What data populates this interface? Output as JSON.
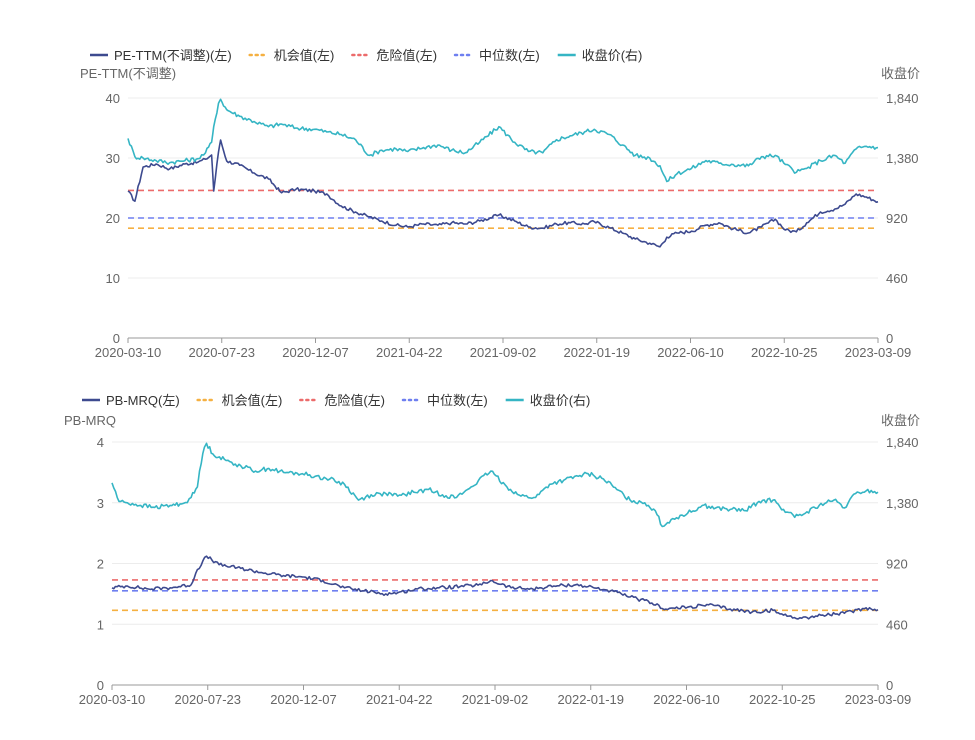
{
  "chart_data": [
    {
      "type": "line",
      "ylabel_left": "PE-TTM(不调整)",
      "ylabel_right": "收盘价",
      "legend": [
        {
          "name": "PE-TTM(不调整)(左)",
          "style": "solid",
          "color": "#3d4a8f"
        },
        {
          "name": "机会值(左)",
          "style": "dotted",
          "color": "#f5b041"
        },
        {
          "name": "危险值(左)",
          "style": "dotted",
          "color": "#ec6b6b"
        },
        {
          "name": "中位数(左)",
          "style": "dotted",
          "color": "#6e7ff0"
        },
        {
          "name": "收盘价(右)",
          "style": "solid",
          "color": "#35b5c4"
        }
      ],
      "legend_position": "top-left",
      "x_ticks": [
        "2020-03-10",
        "2020-07-23",
        "2020-12-07",
        "2021-04-22",
        "2021-09-02",
        "2022-01-19",
        "2022-06-10",
        "2022-10-25",
        "2023-03-09"
      ],
      "y_left_ticks": [
        "0",
        "10",
        "20",
        "30",
        "40"
      ],
      "y_left_range": [
        0,
        40
      ],
      "y_right_ticks": [
        "0",
        "460",
        "920",
        "1,380",
        "1,840"
      ],
      "y_right_range": [
        0,
        1840
      ],
      "grid": true,
      "reference_lines": {
        "opportunity": 18.3,
        "danger": 24.6,
        "median": 20.0
      },
      "series": [
        {
          "name": "PE-TTM(不调整)",
          "axis": "left",
          "color": "#3d4a8f",
          "x": [
            "2020-03-10",
            "2020-03-20",
            "2020-04-01",
            "2020-04-20",
            "2020-05-10",
            "2020-06-01",
            "2020-06-20",
            "2020-07-01",
            "2020-07-10",
            "2020-07-13",
            "2020-07-20",
            "2020-07-23",
            "2020-08-01",
            "2020-08-20",
            "2020-09-10",
            "2020-10-01",
            "2020-10-20",
            "2020-11-10",
            "2020-12-07",
            "2020-12-25",
            "2021-01-15",
            "2021-02-05",
            "2021-02-25",
            "2021-03-15",
            "2021-04-05",
            "2021-04-22",
            "2021-05-15",
            "2021-06-05",
            "2021-06-25",
            "2021-07-15",
            "2021-08-05",
            "2021-09-02",
            "2021-09-25",
            "2021-10-15",
            "2021-11-05",
            "2021-11-25",
            "2021-12-15",
            "2022-01-05",
            "2022-01-19",
            "2022-02-10",
            "2022-03-01",
            "2022-03-20",
            "2022-04-10",
            "2022-04-25",
            "2022-05-05",
            "2022-05-20",
            "2022-06-10",
            "2022-07-01",
            "2022-07-20",
            "2022-08-10",
            "2022-09-01",
            "2022-09-20",
            "2022-10-10",
            "2022-10-25",
            "2022-11-10",
            "2022-11-25",
            "2022-12-15",
            "2023-01-05",
            "2023-01-20",
            "2023-02-05",
            "2023-02-20",
            "2023-03-09"
          ],
          "values": [
            24.5,
            22.8,
            28.5,
            29.0,
            28.2,
            29.0,
            29.3,
            29.8,
            30.5,
            24.5,
            31.0,
            33.0,
            29.5,
            28.8,
            27.5,
            26.5,
            24.2,
            24.8,
            24.5,
            24.0,
            22.0,
            21.0,
            20.2,
            19.5,
            18.8,
            18.5,
            19.0,
            18.8,
            19.2,
            19.0,
            19.5,
            20.5,
            19.5,
            18.5,
            18.3,
            19.0,
            19.2,
            19.0,
            19.4,
            18.4,
            17.5,
            16.5,
            15.8,
            15.2,
            16.8,
            17.5,
            17.8,
            18.8,
            19.2,
            18.2,
            17.5,
            18.5,
            19.8,
            18.0,
            17.7,
            19.2,
            21.0,
            21.5,
            22.3,
            24.0,
            23.5,
            22.7
          ]
        },
        {
          "name": "收盘价",
          "axis": "right",
          "color": "#35b5c4",
          "x": [
            "2020-03-10",
            "2020-03-20",
            "2020-04-01",
            "2020-04-20",
            "2020-05-10",
            "2020-06-01",
            "2020-06-20",
            "2020-07-01",
            "2020-07-10",
            "2020-07-13",
            "2020-07-20",
            "2020-07-23",
            "2020-08-01",
            "2020-08-20",
            "2020-09-10",
            "2020-10-01",
            "2020-10-20",
            "2020-11-10",
            "2020-12-07",
            "2020-12-25",
            "2021-01-15",
            "2021-02-05",
            "2021-02-25",
            "2021-03-15",
            "2021-04-05",
            "2021-04-22",
            "2021-05-15",
            "2021-06-05",
            "2021-06-25",
            "2021-07-15",
            "2021-08-05",
            "2021-09-02",
            "2021-09-25",
            "2021-10-15",
            "2021-11-05",
            "2021-11-25",
            "2021-12-15",
            "2022-01-05",
            "2022-01-19",
            "2022-02-10",
            "2022-03-01",
            "2022-03-20",
            "2022-04-10",
            "2022-04-25",
            "2022-05-05",
            "2022-05-20",
            "2022-06-10",
            "2022-07-01",
            "2022-07-20",
            "2022-08-10",
            "2022-09-01",
            "2022-09-20",
            "2022-10-10",
            "2022-10-25",
            "2022-11-10",
            "2022-11-25",
            "2022-12-15",
            "2023-01-05",
            "2023-01-20",
            "2023-02-05",
            "2023-02-20",
            "2023-03-09"
          ],
          "values": [
            1530,
            1390,
            1380,
            1360,
            1345,
            1360,
            1375,
            1420,
            1500,
            1620,
            1800,
            1830,
            1750,
            1700,
            1660,
            1620,
            1640,
            1610,
            1600,
            1580,
            1560,
            1520,
            1400,
            1440,
            1450,
            1430,
            1460,
            1480,
            1440,
            1420,
            1500,
            1620,
            1500,
            1430,
            1420,
            1520,
            1550,
            1580,
            1600,
            1560,
            1480,
            1400,
            1380,
            1320,
            1200,
            1260,
            1300,
            1360,
            1340,
            1330,
            1320,
            1390,
            1400,
            1330,
            1270,
            1300,
            1360,
            1400,
            1340,
            1450,
            1470,
            1460
          ]
        }
      ]
    },
    {
      "type": "line",
      "ylabel_left": "PB-MRQ",
      "ylabel_right": "收盘价",
      "legend": [
        {
          "name": "PB-MRQ(左)",
          "style": "solid",
          "color": "#3d4a8f"
        },
        {
          "name": "机会值(左)",
          "style": "dotted",
          "color": "#f5b041"
        },
        {
          "name": "危险值(左)",
          "style": "dotted",
          "color": "#ec6b6b"
        },
        {
          "name": "中位数(左)",
          "style": "dotted",
          "color": "#6e7ff0"
        },
        {
          "name": "收盘价(右)",
          "style": "solid",
          "color": "#35b5c4"
        }
      ],
      "legend_position": "top-left",
      "x_ticks": [
        "2020-03-10",
        "2020-07-23",
        "2020-12-07",
        "2021-04-22",
        "2021-09-02",
        "2022-01-19",
        "2022-06-10",
        "2022-10-25",
        "2023-03-09"
      ],
      "y_left_ticks": [
        "0",
        "1",
        "2",
        "3",
        "4"
      ],
      "y_left_range": [
        0,
        4
      ],
      "y_right_ticks": [
        "0",
        "460",
        "920",
        "1,380",
        "1,840"
      ],
      "y_right_range": [
        0,
        1840
      ],
      "grid": true,
      "reference_lines": {
        "opportunity": 1.23,
        "danger": 1.73,
        "median": 1.55
      },
      "series": [
        {
          "name": "PB-MRQ",
          "axis": "left",
          "color": "#3d4a8f",
          "x": [
            "2020-03-10",
            "2020-04-01",
            "2020-05-01",
            "2020-06-01",
            "2020-07-01",
            "2020-07-10",
            "2020-07-23",
            "2020-08-10",
            "2020-09-10",
            "2020-10-10",
            "2020-11-10",
            "2020-12-07",
            "2021-01-05",
            "2021-02-05",
            "2021-03-05",
            "2021-04-05",
            "2021-04-22",
            "2021-05-20",
            "2021-06-20",
            "2021-07-20",
            "2021-08-20",
            "2021-09-02",
            "2021-10-01",
            "2021-11-01",
            "2021-12-01",
            "2022-01-01",
            "2022-01-19",
            "2022-02-20",
            "2022-03-20",
            "2022-04-20",
            "2022-05-10",
            "2022-06-10",
            "2022-07-10",
            "2022-08-10",
            "2022-09-10",
            "2022-10-10",
            "2022-10-25",
            "2022-11-20",
            "2022-12-20",
            "2023-01-20",
            "2023-02-20",
            "2023-03-09"
          ],
          "values": [
            1.6,
            1.63,
            1.58,
            1.6,
            1.65,
            1.9,
            2.12,
            1.98,
            1.92,
            1.85,
            1.8,
            1.78,
            1.72,
            1.6,
            1.55,
            1.5,
            1.52,
            1.58,
            1.6,
            1.62,
            1.65,
            1.72,
            1.6,
            1.58,
            1.63,
            1.65,
            1.62,
            1.55,
            1.45,
            1.35,
            1.25,
            1.28,
            1.32,
            1.25,
            1.2,
            1.23,
            1.15,
            1.1,
            1.15,
            1.18,
            1.27,
            1.24
          ]
        },
        {
          "name": "收盘价",
          "axis": "right",
          "color": "#35b5c4",
          "x": [
            "2020-03-10",
            "2020-03-20",
            "2020-04-01",
            "2020-04-20",
            "2020-05-10",
            "2020-06-01",
            "2020-06-20",
            "2020-07-01",
            "2020-07-10",
            "2020-07-13",
            "2020-07-20",
            "2020-07-23",
            "2020-08-01",
            "2020-08-20",
            "2020-09-10",
            "2020-10-01",
            "2020-10-20",
            "2020-11-10",
            "2020-12-07",
            "2020-12-25",
            "2021-01-15",
            "2021-02-05",
            "2021-02-25",
            "2021-03-15",
            "2021-04-05",
            "2021-04-22",
            "2021-05-15",
            "2021-06-05",
            "2021-06-25",
            "2021-07-15",
            "2021-08-05",
            "2021-09-02",
            "2021-09-25",
            "2021-10-15",
            "2021-11-05",
            "2021-11-25",
            "2021-12-15",
            "2022-01-05",
            "2022-01-19",
            "2022-02-10",
            "2022-03-01",
            "2022-03-20",
            "2022-04-10",
            "2022-04-25",
            "2022-05-05",
            "2022-05-20",
            "2022-06-10",
            "2022-07-01",
            "2022-07-20",
            "2022-08-10",
            "2022-09-01",
            "2022-09-20",
            "2022-10-10",
            "2022-10-25",
            "2022-11-10",
            "2022-11-25",
            "2022-12-15",
            "2023-01-05",
            "2023-01-20",
            "2023-02-05",
            "2023-02-20",
            "2023-03-09"
          ],
          "values": [
            1530,
            1390,
            1380,
            1360,
            1345,
            1360,
            1375,
            1420,
            1500,
            1620,
            1800,
            1830,
            1750,
            1700,
            1660,
            1620,
            1640,
            1610,
            1600,
            1580,
            1560,
            1520,
            1400,
            1440,
            1450,
            1430,
            1460,
            1480,
            1440,
            1420,
            1500,
            1620,
            1500,
            1430,
            1420,
            1520,
            1550,
            1580,
            1600,
            1560,
            1480,
            1400,
            1380,
            1320,
            1200,
            1260,
            1300,
            1360,
            1340,
            1330,
            1320,
            1390,
            1400,
            1330,
            1270,
            1300,
            1360,
            1400,
            1340,
            1450,
            1470,
            1460
          ]
        }
      ]
    }
  ]
}
